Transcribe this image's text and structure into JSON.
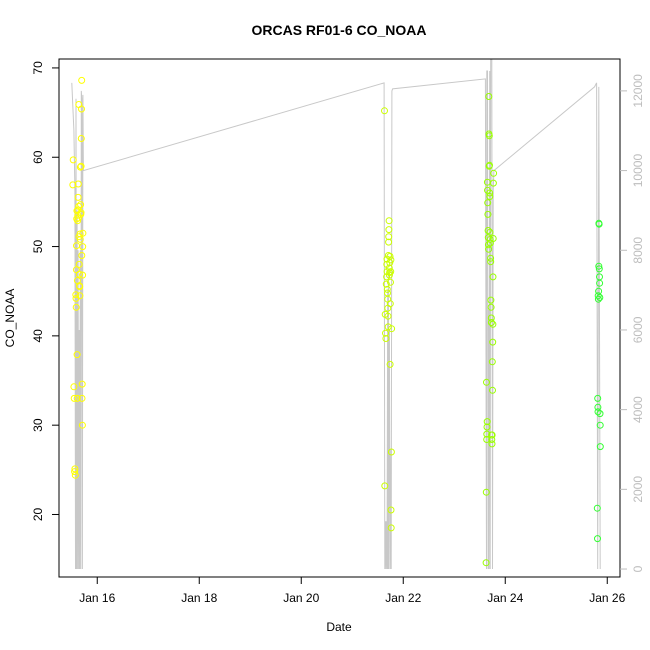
{
  "chart_data": {
    "type": "scatter",
    "title": "ORCAS RF01-6 CO_NOAA",
    "xlabel": "Date",
    "ylabel": "CO_NOAA",
    "xlim": [
      "2016-01-15T06:00",
      "2016-01-26T06:00"
    ],
    "ylim": [
      13,
      71
    ],
    "y2lim": [
      -200,
      12800
    ],
    "x_ticks": [
      {
        "label": "Jan 16",
        "date": "2016-01-16T00:00"
      },
      {
        "label": "Jan 18",
        "date": "2016-01-18T00:00"
      },
      {
        "label": "Jan 20",
        "date": "2016-01-20T00:00"
      },
      {
        "label": "Jan 22",
        "date": "2016-01-22T00:00"
      },
      {
        "label": "Jan 24",
        "date": "2016-01-24T00:00"
      },
      {
        "label": "Jan 26",
        "date": "2016-01-26T00:00"
      }
    ],
    "y_ticks": [
      20,
      30,
      40,
      50,
      60,
      70
    ],
    "y2_ticks": [
      0,
      2000,
      4000,
      6000,
      8000,
      10000,
      12000
    ],
    "point_style": "open-circle",
    "colors": {
      "flight1": "#ffff00",
      "flight2": "#ccff00",
      "flight3": "#99ff00",
      "flight4": "#33ff33",
      "altitude_line": "#c8c8c8",
      "right_axis": "#bdbdbd"
    },
    "series": [
      {
        "color_key": "flight1",
        "points": [
          [
            "2016-01-15T12:30",
            56.9
          ],
          [
            "2016-01-15T12:40",
            59.7
          ],
          [
            "2016-01-15T13:00",
            34.3
          ],
          [
            "2016-01-15T13:10",
            33.0
          ],
          [
            "2016-01-15T13:20",
            24.8
          ],
          [
            "2016-01-15T13:30",
            25.1
          ],
          [
            "2016-01-15T13:40",
            24.4
          ],
          [
            "2016-01-15T13:55",
            44.6
          ],
          [
            "2016-01-15T14:00",
            44.2
          ],
          [
            "2016-01-15T14:05",
            43.2
          ],
          [
            "2016-01-15T14:10",
            47.4
          ],
          [
            "2016-01-15T14:15",
            50.1
          ],
          [
            "2016-01-15T14:20",
            53.1
          ],
          [
            "2016-01-15T14:25",
            54.0
          ],
          [
            "2016-01-15T14:30",
            37.9
          ],
          [
            "2016-01-15T14:35",
            33.0
          ],
          [
            "2016-01-15T14:40",
            46.2
          ],
          [
            "2016-01-15T14:45",
            52.9
          ],
          [
            "2016-01-15T14:50",
            53.5
          ],
          [
            "2016-01-15T14:55",
            54.1
          ],
          [
            "2016-01-15T15:00",
            55.5
          ],
          [
            "2016-01-15T15:05",
            57.0
          ],
          [
            "2016-01-15T15:10",
            53.2
          ],
          [
            "2016-01-15T15:15",
            54.5
          ],
          [
            "2016-01-15T15:20",
            65.9
          ],
          [
            "2016-01-15T15:25",
            51.1
          ],
          [
            "2016-01-15T15:30",
            48.0
          ],
          [
            "2016-01-15T15:35",
            46.9
          ],
          [
            "2016-01-15T15:40",
            45.6
          ],
          [
            "2016-01-15T15:45",
            45.5
          ],
          [
            "2016-01-15T15:50",
            44.5
          ],
          [
            "2016-01-15T15:55",
            51.4
          ],
          [
            "2016-01-15T16:00",
            50.8
          ],
          [
            "2016-01-15T16:05",
            58.9
          ],
          [
            "2016-01-15T16:10",
            54.7
          ],
          [
            "2016-01-15T16:15",
            53.6
          ],
          [
            "2016-01-15T16:20",
            53.8
          ],
          [
            "2016-01-15T16:25",
            59.0
          ],
          [
            "2016-01-15T16:30",
            62.1
          ],
          [
            "2016-01-15T16:35",
            65.4
          ],
          [
            "2016-01-15T16:40",
            68.6
          ],
          [
            "2016-01-15T16:45",
            49.0
          ],
          [
            "2016-01-15T16:50",
            33.0
          ],
          [
            "2016-01-15T16:55",
            34.6
          ],
          [
            "2016-01-15T17:00",
            30.0
          ],
          [
            "2016-01-15T17:05",
            46.8
          ],
          [
            "2016-01-15T17:10",
            50.0
          ],
          [
            "2016-01-15T17:15",
            51.5
          ]
        ]
      },
      {
        "color_key": "flight2",
        "points": [
          [
            "2016-01-21T15:10",
            65.2
          ],
          [
            "2016-01-21T15:20",
            23.2
          ],
          [
            "2016-01-21T15:30",
            42.4
          ],
          [
            "2016-01-21T15:40",
            40.3
          ],
          [
            "2016-01-21T15:50",
            39.7
          ],
          [
            "2016-01-21T16:00",
            45.8
          ],
          [
            "2016-01-21T16:10",
            46.6
          ],
          [
            "2016-01-21T16:15",
            48.0
          ],
          [
            "2016-01-21T16:20",
            48.6
          ],
          [
            "2016-01-21T16:25",
            47.2
          ],
          [
            "2016-01-21T16:30",
            45.2
          ],
          [
            "2016-01-21T16:35",
            44.8
          ],
          [
            "2016-01-21T16:40",
            44.1
          ],
          [
            "2016-01-21T16:45",
            43.1
          ],
          [
            "2016-01-21T16:50",
            42.2
          ],
          [
            "2016-01-21T16:55",
            41.0
          ],
          [
            "2016-01-21T17:00",
            49.0
          ],
          [
            "2016-01-21T17:05",
            50.5
          ],
          [
            "2016-01-21T17:10",
            51.1
          ],
          [
            "2016-01-21T17:15",
            51.9
          ],
          [
            "2016-01-21T17:20",
            52.9
          ],
          [
            "2016-01-21T17:25",
            47.6
          ],
          [
            "2016-01-21T17:30",
            46.8
          ],
          [
            "2016-01-21T17:35",
            47.1
          ],
          [
            "2016-01-21T17:40",
            48.2
          ],
          [
            "2016-01-21T17:45",
            48.9
          ],
          [
            "2016-01-21T17:50",
            36.8
          ],
          [
            "2016-01-21T17:55",
            43.6
          ],
          [
            "2016-01-21T18:00",
            46.0
          ],
          [
            "2016-01-21T18:05",
            47.2
          ],
          [
            "2016-01-21T18:10",
            48.5
          ],
          [
            "2016-01-21T18:15",
            20.5
          ],
          [
            "2016-01-21T18:20",
            18.5
          ],
          [
            "2016-01-21T18:25",
            27.0
          ],
          [
            "2016-01-21T18:30",
            40.8
          ]
        ]
      },
      {
        "color_key": "flight3",
        "points": [
          [
            "2016-01-23T15:00",
            14.6
          ],
          [
            "2016-01-23T15:05",
            22.5
          ],
          [
            "2016-01-23T15:10",
            34.8
          ],
          [
            "2016-01-23T15:15",
            28.4
          ],
          [
            "2016-01-23T15:20",
            29.0
          ],
          [
            "2016-01-23T15:25",
            29.8
          ],
          [
            "2016-01-23T15:30",
            30.4
          ],
          [
            "2016-01-23T15:35",
            57.2
          ],
          [
            "2016-01-23T15:40",
            56.3
          ],
          [
            "2016-01-23T15:45",
            54.9
          ],
          [
            "2016-01-23T15:50",
            53.6
          ],
          [
            "2016-01-23T15:55",
            51.8
          ],
          [
            "2016-01-23T16:00",
            51.0
          ],
          [
            "2016-01-23T16:05",
            50.2
          ],
          [
            "2016-01-23T16:10",
            49.7
          ],
          [
            "2016-01-23T16:15",
            66.8
          ],
          [
            "2016-01-23T16:20",
            62.6
          ],
          [
            "2016-01-23T16:25",
            59.0
          ],
          [
            "2016-01-23T16:30",
            62.4
          ],
          [
            "2016-01-23T16:35",
            59.1
          ],
          [
            "2016-01-23T16:40",
            56.0
          ],
          [
            "2016-01-23T16:45",
            55.6
          ],
          [
            "2016-01-23T16:50",
            51.6
          ],
          [
            "2016-01-23T16:55",
            50.8
          ],
          [
            "2016-01-23T17:00",
            50.4
          ],
          [
            "2016-01-23T17:05",
            48.7
          ],
          [
            "2016-01-23T17:10",
            48.3
          ],
          [
            "2016-01-23T17:15",
            44.0
          ],
          [
            "2016-01-23T17:20",
            43.2
          ],
          [
            "2016-01-23T17:25",
            42.0
          ],
          [
            "2016-01-23T17:30",
            41.5
          ],
          [
            "2016-01-23T17:35",
            28.9
          ],
          [
            "2016-01-23T17:40",
            28.4
          ],
          [
            "2016-01-23T17:45",
            27.9
          ],
          [
            "2016-01-23T17:50",
            28.9
          ],
          [
            "2016-01-23T17:55",
            37.1
          ],
          [
            "2016-01-23T18:00",
            33.9
          ],
          [
            "2016-01-23T18:05",
            39.3
          ],
          [
            "2016-01-23T18:10",
            41.3
          ],
          [
            "2016-01-23T18:15",
            46.6
          ],
          [
            "2016-01-23T18:20",
            50.9
          ],
          [
            "2016-01-23T18:25",
            57.1
          ],
          [
            "2016-01-23T18:30",
            58.2
          ]
        ]
      },
      {
        "color_key": "flight4",
        "points": [
          [
            "2016-01-25T19:20",
            20.7
          ],
          [
            "2016-01-25T19:25",
            17.3
          ],
          [
            "2016-01-25T19:30",
            33.0
          ],
          [
            "2016-01-25T19:35",
            32.0
          ],
          [
            "2016-01-25T19:40",
            31.5
          ],
          [
            "2016-01-25T19:45",
            44.5
          ],
          [
            "2016-01-25T19:50",
            44.1
          ],
          [
            "2016-01-25T19:55",
            45.0
          ],
          [
            "2016-01-25T20:00",
            47.8
          ],
          [
            "2016-01-25T20:05",
            52.6
          ],
          [
            "2016-01-25T20:10",
            52.5
          ],
          [
            "2016-01-25T20:15",
            47.5
          ],
          [
            "2016-01-25T20:20",
            46.6
          ],
          [
            "2016-01-25T20:25",
            45.9
          ],
          [
            "2016-01-25T20:30",
            44.3
          ],
          [
            "2016-01-25T20:35",
            31.3
          ],
          [
            "2016-01-25T20:40",
            30.0
          ],
          [
            "2016-01-25T20:45",
            27.6
          ]
        ]
      }
    ],
    "altitude_series": {
      "axis": "right",
      "points": [
        [
          "2016-01-15T12:00",
          12200
        ],
        [
          "2016-01-15T13:00",
          11000
        ],
        [
          "2016-01-15T13:30",
          9500
        ],
        [
          "2016-01-15T13:45",
          0
        ],
        [
          "2016-01-15T14:00",
          11800
        ],
        [
          "2016-01-15T14:15",
          0
        ],
        [
          "2016-01-15T14:30",
          9000
        ],
        [
          "2016-01-15T14:45",
          0
        ],
        [
          "2016-01-15T15:00",
          8000
        ],
        [
          "2016-01-15T15:15",
          0
        ],
        [
          "2016-01-15T15:30",
          6000
        ],
        [
          "2016-01-15T15:45",
          0
        ],
        [
          "2016-01-15T16:00",
          8000
        ],
        [
          "2016-01-15T16:15",
          0
        ],
        [
          "2016-01-15T16:30",
          12000
        ],
        [
          "2016-01-15T16:45",
          11800
        ],
        [
          "2016-01-15T17:00",
          0
        ],
        [
          "2016-01-15T17:15",
          11900
        ],
        [
          "2016-01-15T17:30",
          10000
        ],
        [
          "2016-01-21T15:00",
          12200
        ],
        [
          "2016-01-21T15:20",
          0
        ],
        [
          "2016-01-21T15:40",
          1200
        ],
        [
          "2016-01-21T15:50",
          0
        ],
        [
          "2016-01-21T16:00",
          1200
        ],
        [
          "2016-01-21T16:20",
          0
        ],
        [
          "2016-01-21T16:40",
          7000
        ],
        [
          "2016-01-21T16:50",
          0
        ],
        [
          "2016-01-21T17:00",
          7500
        ],
        [
          "2016-01-21T17:10",
          0
        ],
        [
          "2016-01-21T17:30",
          6000
        ],
        [
          "2016-01-21T17:50",
          0
        ],
        [
          "2016-01-21T18:10",
          3000
        ],
        [
          "2016-01-21T18:20",
          0
        ],
        [
          "2016-01-21T18:40",
          12000
        ],
        [
          "2016-01-21T19:00",
          12050
        ],
        [
          "2016-01-23T14:40",
          12300
        ],
        [
          "2016-01-23T15:00",
          4000
        ],
        [
          "2016-01-23T15:10",
          0
        ],
        [
          "2016-01-23T15:20",
          12500
        ],
        [
          "2016-01-23T15:40",
          12500
        ],
        [
          "2016-01-23T15:55",
          0
        ],
        [
          "2016-01-23T16:10",
          6500
        ],
        [
          "2016-01-23T16:20",
          0
        ],
        [
          "2016-01-23T16:40",
          12500
        ],
        [
          "2016-01-23T16:55",
          0
        ],
        [
          "2016-01-23T17:10",
          12800
        ],
        [
          "2016-01-23T17:40",
          12800
        ],
        [
          "2016-01-23T18:00",
          0
        ],
        [
          "2016-01-23T18:20",
          9500
        ],
        [
          "2016-01-23T18:40",
          10000
        ],
        [
          "2016-01-25T18:00",
          12100
        ],
        [
          "2016-01-25T19:00",
          12200
        ],
        [
          "2016-01-25T19:30",
          0
        ],
        [
          "2016-01-25T20:00",
          12100
        ],
        [
          "2016-01-25T20:40",
          0
        ]
      ]
    }
  }
}
